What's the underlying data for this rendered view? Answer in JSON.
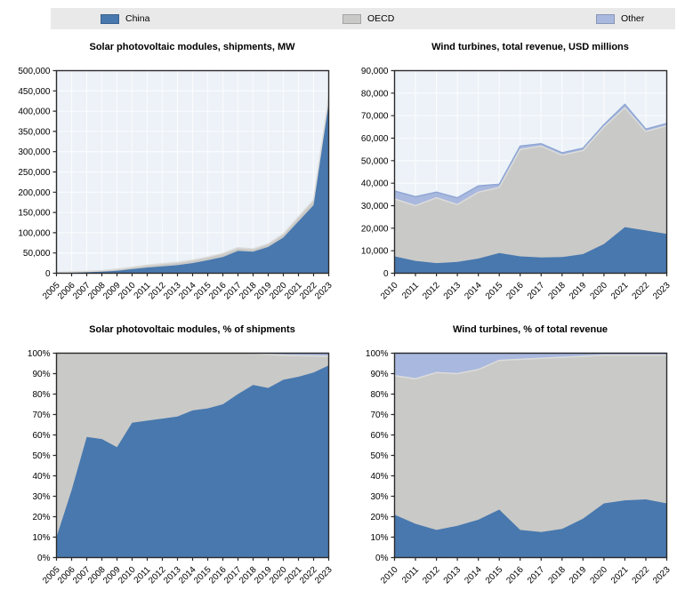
{
  "legend": {
    "items": [
      {
        "label": "China",
        "color": "#4878ae"
      },
      {
        "label": "OECD",
        "color": "#c9c9c7"
      },
      {
        "label": "Other",
        "color": "#a9b8de"
      }
    ],
    "position": "top",
    "background": "#e9e9e9"
  },
  "chart_data": [
    {
      "type": "area",
      "stacked": true,
      "grid": true,
      "title": "Solar photovoltaic modules, shipments, MW",
      "categories": [
        "2005",
        "2006",
        "2007",
        "2008",
        "2009",
        "2010",
        "2011",
        "2012",
        "2013",
        "2014",
        "2015",
        "2016",
        "2017",
        "2018",
        "2019",
        "2020",
        "2021",
        "2022",
        "2023"
      ],
      "ymax": 500000,
      "ytick_labels": [
        "0",
        "50,000",
        "100,000",
        "150,000",
        "200,000",
        "250,000",
        "300,000",
        "350,000",
        "400,000",
        "450,000",
        "500,000"
      ],
      "series": [
        {
          "name": "China",
          "color": "#4878ae",
          "values": [
            200,
            1000,
            2500,
            4000,
            6000,
            10000,
            14000,
            17000,
            20000,
            25000,
            32000,
            40000,
            55000,
            53000,
            65000,
            88000,
            128000,
            168000,
            420000
          ]
        },
        {
          "name": "OECD",
          "color": "#c9c9c7",
          "edge": "#dcdcda",
          "values": [
            1800,
            2200,
            2000,
            2500,
            4000,
            5000,
            6000,
            6500,
            7000,
            7500,
            8000,
            9000,
            8000,
            7000,
            7500,
            9000,
            11000,
            13000,
            15000
          ]
        },
        {
          "name": "Other",
          "color": "#a9b8de",
          "edge": "#8fa6d4",
          "values": [
            0,
            0,
            0,
            0,
            0,
            0,
            0,
            0,
            0,
            0,
            0,
            0,
            0,
            0,
            0,
            0,
            0,
            0,
            0
          ]
        }
      ]
    },
    {
      "type": "area",
      "stacked": true,
      "grid": true,
      "title": "Wind turbines, total revenue, USD millions",
      "categories": [
        "2010",
        "2011",
        "2012",
        "2013",
        "2014",
        "2015",
        "2016",
        "2017",
        "2018",
        "2019",
        "2020",
        "2021",
        "2022",
        "2023"
      ],
      "ymax": 90000,
      "ytick_labels": [
        "0",
        "10,000",
        "20,000",
        "30,000",
        "40,000",
        "50,000",
        "60,000",
        "70,000",
        "80,000",
        "90,000"
      ],
      "series": [
        {
          "name": "China",
          "color": "#4878ae",
          "values": [
            7500,
            5500,
            4500,
            5000,
            6500,
            9000,
            7500,
            7000,
            7200,
            8500,
            13000,
            20500,
            19000,
            17500
          ]
        },
        {
          "name": "OECD",
          "color": "#c9c9c7",
          "edge": "#dcdcda",
          "values": [
            25500,
            24500,
            29000,
            25500,
            29500,
            29100,
            47500,
            49500,
            45300,
            46000,
            52000,
            53000,
            44000,
            48000
          ]
        },
        {
          "name": "Other",
          "color": "#a9b8de",
          "edge": "#8fa6d4",
          "values": [
            3500,
            4000,
            2500,
            3000,
            2800,
            1400,
            1500,
            1000,
            1000,
            1000,
            1000,
            1500,
            1000,
            1000
          ]
        }
      ]
    },
    {
      "type": "area",
      "stacked": true,
      "grid": true,
      "title": "Solar photovoltaic modules, % of shipments",
      "categories": [
        "2005",
        "2006",
        "2007",
        "2008",
        "2009",
        "2010",
        "2011",
        "2012",
        "2013",
        "2014",
        "2015",
        "2016",
        "2017",
        "2018",
        "2019",
        "2020",
        "2021",
        "2022",
        "2023"
      ],
      "ymax": 100,
      "ytick_labels": [
        "0%",
        "10%",
        "20%",
        "30%",
        "40%",
        "50%",
        "60%",
        "70%",
        "80%",
        "90%",
        "100%"
      ],
      "series": [
        {
          "name": "China",
          "color": "#4878ae",
          "values": [
            10,
            33,
            59,
            58,
            54,
            66,
            67,
            68,
            69,
            72,
            73,
            75,
            80,
            84.5,
            83,
            87,
            88.5,
            90.5,
            94
          ]
        },
        {
          "name": "OECD",
          "color": "#c9c9c7",
          "edge": "#dcdcda",
          "values": [
            90,
            67,
            41,
            42,
            46,
            34,
            33,
            32,
            31,
            28,
            27,
            25,
            20,
            15.5,
            16.5,
            12,
            10.3,
            8.2,
            4.5
          ]
        },
        {
          "name": "Other",
          "color": "#a9b8de",
          "edge": "#8fa6d4",
          "values": [
            0,
            0,
            0,
            0,
            0,
            0,
            0,
            0,
            0,
            0,
            0,
            0,
            0,
            0,
            0.5,
            1,
            1.2,
            1.3,
            1.5
          ]
        }
      ]
    },
    {
      "type": "area",
      "stacked": true,
      "grid": true,
      "title": "Wind turbines, % of total revenue",
      "categories": [
        "2010",
        "2011",
        "2012",
        "2013",
        "2014",
        "2015",
        "2016",
        "2017",
        "2018",
        "2019",
        "2020",
        "2021",
        "2022",
        "2023"
      ],
      "ymax": 100,
      "ytick_labels": [
        "0%",
        "10%",
        "20%",
        "30%",
        "40%",
        "50%",
        "60%",
        "70%",
        "80%",
        "90%",
        "100%"
      ],
      "series": [
        {
          "name": "China",
          "color": "#4878ae",
          "values": [
            21,
            16.5,
            13.5,
            15.5,
            18.5,
            23.5,
            13.5,
            12.5,
            14,
            19,
            26.5,
            28,
            28.5,
            26.5
          ]
        },
        {
          "name": "OECD",
          "color": "#c9c9c7",
          "edge": "#dcdcda",
          "values": [
            68,
            71,
            77,
            74.5,
            73.5,
            73,
            83.5,
            85,
            84,
            79.5,
            72.5,
            71,
            70.5,
            72.5
          ]
        },
        {
          "name": "Other",
          "color": "#a9b8de",
          "edge": "#8fa6d4",
          "values": [
            11,
            12.5,
            9.5,
            10,
            8,
            3.5,
            3,
            2.5,
            2,
            1.5,
            1,
            1,
            1,
            1
          ]
        }
      ]
    }
  ]
}
